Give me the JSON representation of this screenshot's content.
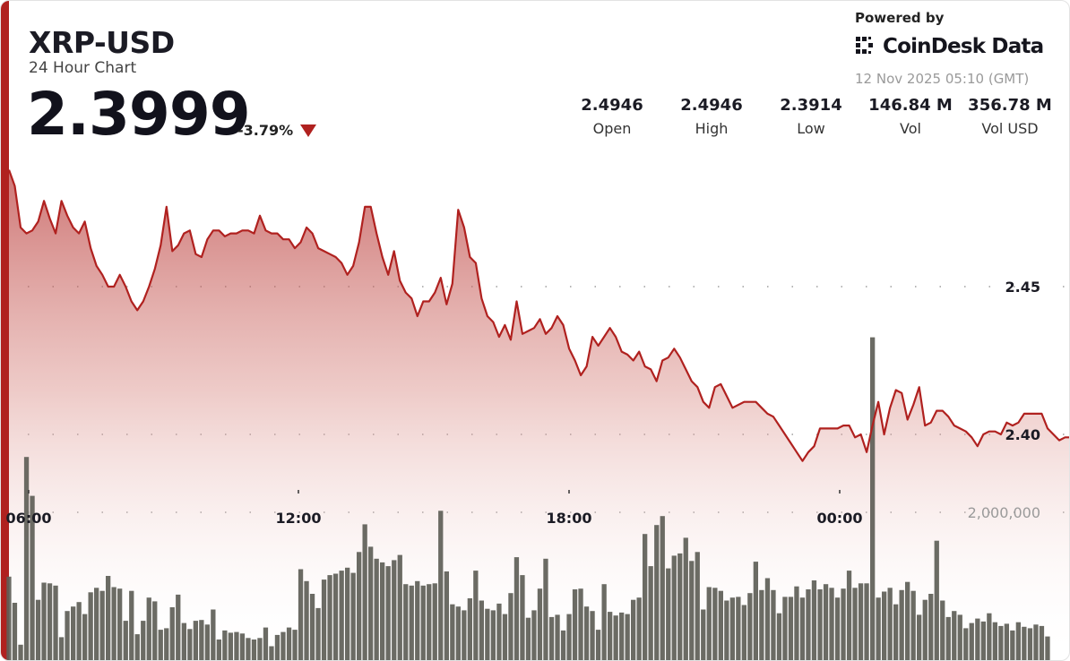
{
  "header": {
    "title": "XRP-USD",
    "subtitle": "24 Hour Chart",
    "price": "2.3999",
    "change": "-3.79%",
    "powered_by": "Powered by",
    "logo_text": "CoinDesk Data",
    "timestamp": "12 Nov 2025 05:10 (GMT)",
    "accent_color": "#b0211f"
  },
  "stats": [
    {
      "value": "2.4946",
      "label": "Open"
    },
    {
      "value": "2.4946",
      "label": "High"
    },
    {
      "value": "2.3914",
      "label": "Low"
    },
    {
      "value": "146.84 M",
      "label": "Vol"
    },
    {
      "value": "356.78 M",
      "label": "Vol USD"
    }
  ],
  "chart_data": {
    "type": "line",
    "price_axis": {
      "ticks": [
        2.45,
        2.4
      ],
      "tick_labels": [
        "2.45",
        "2.40"
      ]
    },
    "volume_axis": {
      "ticks": [
        2000000
      ],
      "tick_labels": [
        "2,000,000"
      ]
    },
    "time_axis": {
      "tick_labels": [
        "06:00",
        "12:00",
        "18:00",
        "00:00"
      ]
    },
    "line_color": "#b0211f",
    "volume_color": "#5e5e57",
    "price_series": [
      2.4895,
      2.484,
      2.47,
      2.468,
      2.469,
      2.472,
      2.479,
      2.473,
      2.468,
      2.479,
      2.474,
      2.47,
      2.468,
      2.472,
      2.463,
      2.457,
      2.454,
      2.45,
      2.45,
      2.454,
      2.45,
      2.445,
      2.442,
      2.445,
      2.45,
      2.456,
      2.464,
      2.477,
      2.462,
      2.464,
      2.468,
      2.469,
      2.461,
      2.46,
      2.466,
      2.469,
      2.469,
      2.467,
      2.468,
      2.468,
      2.469,
      2.469,
      2.468,
      2.474,
      2.469,
      2.468,
      2.468,
      2.466,
      2.466,
      2.463,
      2.465,
      2.47,
      2.468,
      2.463,
      2.462,
      2.461,
      2.46,
      2.458,
      2.454,
      2.457,
      2.465,
      2.477,
      2.477,
      2.468,
      2.46,
      2.454,
      2.462,
      2.452,
      2.448,
      2.446,
      2.44,
      2.445,
      2.445,
      2.448,
      2.453,
      2.444,
      2.451,
      2.476,
      2.47,
      2.46,
      2.458,
      2.446,
      2.44,
      2.438,
      2.433,
      2.437,
      2.432,
      2.445,
      2.434,
      2.435,
      2.436,
      2.439,
      2.434,
      2.436,
      2.44,
      2.437,
      2.429,
      2.425,
      2.42,
      2.423,
      2.433,
      2.43,
      2.433,
      2.436,
      2.433,
      2.428,
      2.427,
      2.425,
      2.428,
      2.423,
      2.422,
      2.418,
      2.425,
      2.426,
      2.429,
      2.426,
      2.422,
      2.418,
      2.416,
      2.411,
      2.409,
      2.416,
      2.417,
      2.413,
      2.409,
      2.41,
      2.411,
      2.411,
      2.411,
      2.409,
      2.407,
      2.406,
      2.403,
      2.4,
      2.397,
      2.394,
      2.391,
      2.394,
      2.396,
      2.402,
      2.402,
      2.402,
      2.402,
      2.403,
      2.403,
      2.399,
      2.4,
      2.394,
      2.403,
      2.411,
      2.4,
      2.409,
      2.415,
      2.414,
      2.405,
      2.41,
      2.416,
      2.403,
      2.404,
      2.408,
      2.408,
      2.406,
      2.403,
      2.402,
      2.401,
      2.399,
      2.396,
      2.4,
      2.401,
      2.401,
      2.4,
      2.404,
      2.403,
      2.404,
      2.407,
      2.407,
      2.407,
      2.407,
      2.402,
      2.4,
      2.398,
      2.399,
      2.399
    ],
    "volume_series": [
      1140000,
      790000,
      230000,
      2740000,
      2220000,
      830000,
      1060000,
      1050000,
      1020000,
      330000,
      680000,
      740000,
      800000,
      640000,
      930000,
      990000,
      950000,
      1150000,
      1000000,
      980000,
      550000,
      950000,
      370000,
      550000,
      860000,
      810000,
      430000,
      450000,
      730000,
      900000,
      520000,
      440000,
      550000,
      560000,
      500000,
      700000,
      300000,
      420000,
      390000,
      400000,
      380000,
      320000,
      300000,
      320000,
      460000,
      210000,
      360000,
      400000,
      460000,
      430000,
      1240000,
      1080000,
      910000,
      720000,
      1100000,
      1160000,
      1180000,
      1220000,
      1260000,
      1190000,
      1470000,
      1840000,
      1540000,
      1380000,
      1330000,
      1280000,
      1360000,
      1430000,
      1040000,
      1020000,
      1080000,
      1020000,
      1040000,
      1050000,
      2020000,
      1210000,
      770000,
      740000,
      690000,
      850000,
      1220000,
      820000,
      710000,
      690000,
      780000,
      640000,
      920000,
      1400000,
      1160000,
      590000,
      690000,
      980000,
      1380000,
      600000,
      630000,
      420000,
      640000,
      970000,
      980000,
      740000,
      680000,
      430000,
      1040000,
      670000,
      620000,
      660000,
      640000,
      830000,
      860000,
      1710000,
      1280000,
      1830000,
      1950000,
      1250000,
      1420000,
      1450000,
      1660000,
      1350000,
      1470000,
      700000,
      1000000,
      990000,
      950000,
      820000,
      860000,
      870000,
      760000,
      920000,
      1340000,
      960000,
      1120000,
      960000,
      650000,
      870000,
      870000,
      1010000,
      860000,
      970000,
      1090000,
      970000,
      1040000,
      990000,
      860000,
      980000,
      1220000,
      990000,
      1050000,
      1050000,
      4340000,
      860000,
      940000,
      990000,
      770000,
      960000,
      1070000,
      950000,
      630000,
      830000,
      910000,
      1620000,
      820000,
      600000,
      680000,
      630000,
      450000,
      520000,
      580000,
      540000,
      650000,
      530000,
      480000,
      510000,
      420000,
      530000,
      470000,
      450000,
      500000,
      480000,
      340000
    ]
  }
}
